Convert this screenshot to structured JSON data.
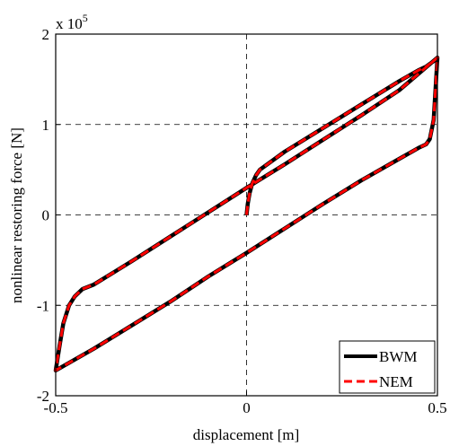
{
  "chart_data": {
    "type": "line",
    "title": "",
    "xlabel": "displacement [m]",
    "ylabel": "nonlinear restoring force [N]",
    "y_multiplier_label": "x 10",
    "y_multiplier_exponent": "5",
    "xlim": [
      -0.5,
      0.5
    ],
    "ylim": [
      -2,
      2
    ],
    "x_ticks": [
      -0.5,
      0,
      0.5
    ],
    "x_tick_labels": [
      "-0.5",
      "0",
      "0.5"
    ],
    "y_ticks": [
      -2,
      -1,
      0,
      1,
      2
    ],
    "y_tick_labels": [
      "-2",
      "-1",
      "0",
      "1",
      "2"
    ],
    "grid": true,
    "legend_position": "bottom-right",
    "series": [
      {
        "name": "BWM",
        "color": "#000000",
        "style": "solid",
        "x": [
          0.0,
          0.003,
          0.008,
          0.015,
          0.025,
          0.035,
          0.1,
          0.2,
          0.3,
          0.4,
          0.45,
          0.47,
          0.48,
          0.49,
          0.495,
          0.5,
          0.4,
          0.3,
          0.2,
          0.1,
          0.0,
          -0.1,
          -0.2,
          -0.3,
          -0.4,
          -0.43,
          -0.45,
          -0.465,
          -0.48,
          -0.49,
          -0.5,
          -0.4,
          -0.3,
          -0.2,
          -0.1,
          0.0,
          0.1,
          0.2,
          0.3,
          0.4,
          0.45,
          0.47,
          0.48,
          0.49,
          0.5
        ],
        "y": [
          0.0,
          0.12,
          0.24,
          0.35,
          0.44,
          0.5,
          0.7,
          0.96,
          1.22,
          1.48,
          1.6,
          1.64,
          1.67,
          1.7,
          1.72,
          1.74,
          1.38,
          1.1,
          0.83,
          0.56,
          0.3,
          0.03,
          -0.24,
          -0.51,
          -0.77,
          -0.82,
          -0.9,
          -1.0,
          -1.2,
          -1.45,
          -1.72,
          -1.48,
          -1.22,
          -0.96,
          -0.68,
          -0.42,
          -0.15,
          0.12,
          0.38,
          0.62,
          0.74,
          0.78,
          0.84,
          1.05,
          1.74
        ]
      },
      {
        "name": "NEM",
        "color": "#ff0000",
        "style": "dashed",
        "x": [
          0.0,
          0.003,
          0.008,
          0.015,
          0.025,
          0.035,
          0.1,
          0.2,
          0.3,
          0.4,
          0.45,
          0.47,
          0.48,
          0.49,
          0.495,
          0.5,
          0.4,
          0.3,
          0.2,
          0.1,
          0.0,
          -0.1,
          -0.2,
          -0.3,
          -0.4,
          -0.43,
          -0.45,
          -0.465,
          -0.48,
          -0.49,
          -0.5,
          -0.4,
          -0.3,
          -0.2,
          -0.1,
          0.0,
          0.1,
          0.2,
          0.3,
          0.4,
          0.45,
          0.47,
          0.48,
          0.49,
          0.5
        ],
        "y": [
          0.0,
          0.12,
          0.24,
          0.35,
          0.44,
          0.5,
          0.7,
          0.96,
          1.22,
          1.48,
          1.6,
          1.64,
          1.67,
          1.7,
          1.72,
          1.74,
          1.38,
          1.1,
          0.83,
          0.56,
          0.3,
          0.03,
          -0.24,
          -0.51,
          -0.77,
          -0.82,
          -0.9,
          -1.0,
          -1.2,
          -1.45,
          -1.72,
          -1.48,
          -1.22,
          -0.96,
          -0.68,
          -0.42,
          -0.15,
          0.12,
          0.38,
          0.62,
          0.74,
          0.78,
          0.84,
          1.05,
          1.74
        ]
      }
    ]
  }
}
